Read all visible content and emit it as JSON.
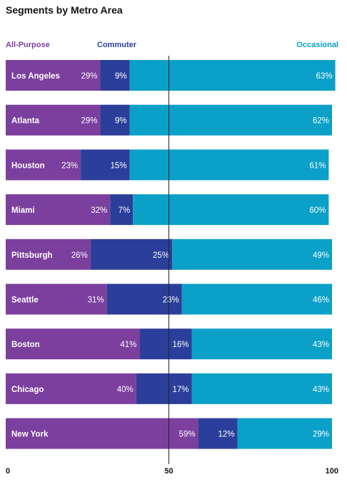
{
  "chart_data": {
    "type": "bar",
    "stacked": true,
    "orientation": "horizontal",
    "title": "Segments by Metro Area",
    "categories": [
      "Los Angeles",
      "Atlanta",
      "Houston",
      "Miami",
      "Pittsburgh",
      "Seattle",
      "Boston",
      "Chicago",
      "New York"
    ],
    "series": [
      {
        "name": "All-Purpose",
        "color": "#7b3f9e",
        "values": [
          29,
          29,
          23,
          32,
          26,
          31,
          41,
          40,
          59
        ]
      },
      {
        "name": "Commuter",
        "color": "#2b3f9a",
        "values": [
          9,
          9,
          15,
          7,
          25,
          23,
          16,
          17,
          12
        ]
      },
      {
        "name": "Occasional",
        "color": "#0ba0c7",
        "values": [
          63,
          62,
          61,
          60,
          49,
          46,
          43,
          43,
          29
        ]
      }
    ],
    "value_suffix": "%",
    "xlim": [
      0,
      100
    ],
    "xticks": [
      "0",
      "50",
      "100"
    ],
    "reference_line": 50,
    "grid": false,
    "legend_position": "top"
  }
}
